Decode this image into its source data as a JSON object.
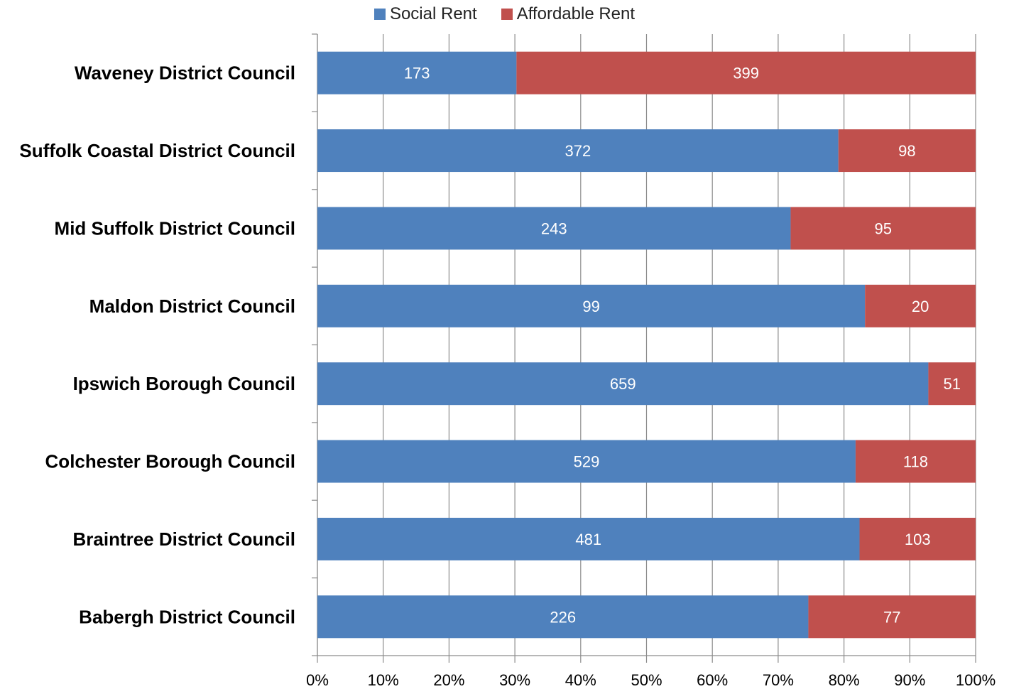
{
  "chart_data": {
    "type": "bar",
    "orientation": "horizontal",
    "stacked": "percent",
    "categories": [
      "Waveney District Council",
      "Suffolk Coastal District Council",
      "Mid Suffolk District Council",
      "Maldon District Council",
      "Ipswich Borough Council",
      "Colchester Borough Council",
      "Braintree District Council",
      "Babergh District Council"
    ],
    "series": [
      {
        "name": "Social Rent",
        "color": "#4F81BD",
        "values": [
          173,
          372,
          243,
          99,
          659,
          529,
          481,
          226
        ]
      },
      {
        "name": "Affordable Rent",
        "color": "#C0504D",
        "values": [
          399,
          98,
          95,
          20,
          51,
          118,
          103,
          77
        ]
      }
    ],
    "xticks": [
      "0%",
      "10%",
      "20%",
      "30%",
      "40%",
      "50%",
      "60%",
      "70%",
      "80%",
      "90%",
      "100%"
    ],
    "xlim": [
      0,
      100
    ],
    "grid": true,
    "legend": "top-center"
  }
}
